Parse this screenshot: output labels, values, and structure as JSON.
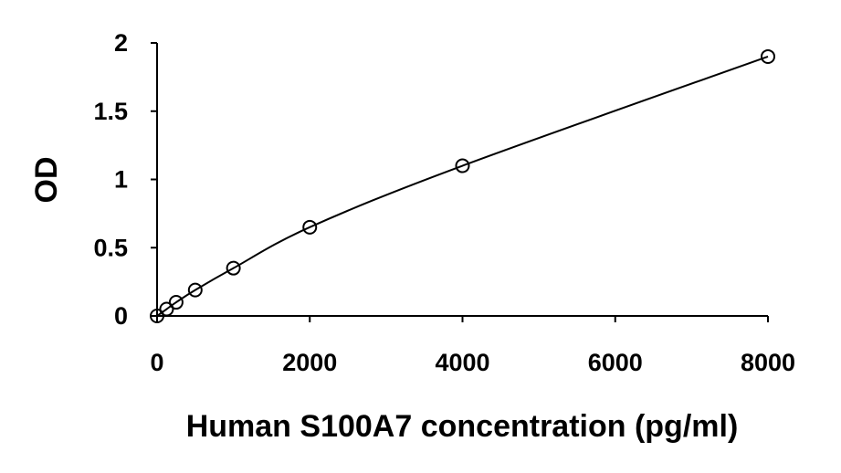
{
  "chart_data": {
    "type": "scatter",
    "title": "",
    "xlabel": "Human S100A7 concentration (pg/ml)",
    "ylabel": "OD",
    "xlim": [
      0,
      8000
    ],
    "ylim": [
      0,
      2
    ],
    "x_ticks": [
      "0",
      "2000",
      "4000",
      "6000",
      "8000"
    ],
    "y_ticks": [
      "0",
      "0.5",
      "1",
      "1.5",
      "2"
    ],
    "grid": false,
    "legend": "none",
    "series": [
      {
        "marker": "open-circle",
        "line": "smooth",
        "color": "#000000",
        "points": [
          {
            "x": 0,
            "y": 0.0
          },
          {
            "x": 125,
            "y": 0.05
          },
          {
            "x": 250,
            "y": 0.1
          },
          {
            "x": 500,
            "y": 0.19
          },
          {
            "x": 1000,
            "y": 0.35
          },
          {
            "x": 2000,
            "y": 0.65
          },
          {
            "x": 4000,
            "y": 1.1
          },
          {
            "x": 8000,
            "y": 1.9
          }
        ]
      }
    ]
  }
}
